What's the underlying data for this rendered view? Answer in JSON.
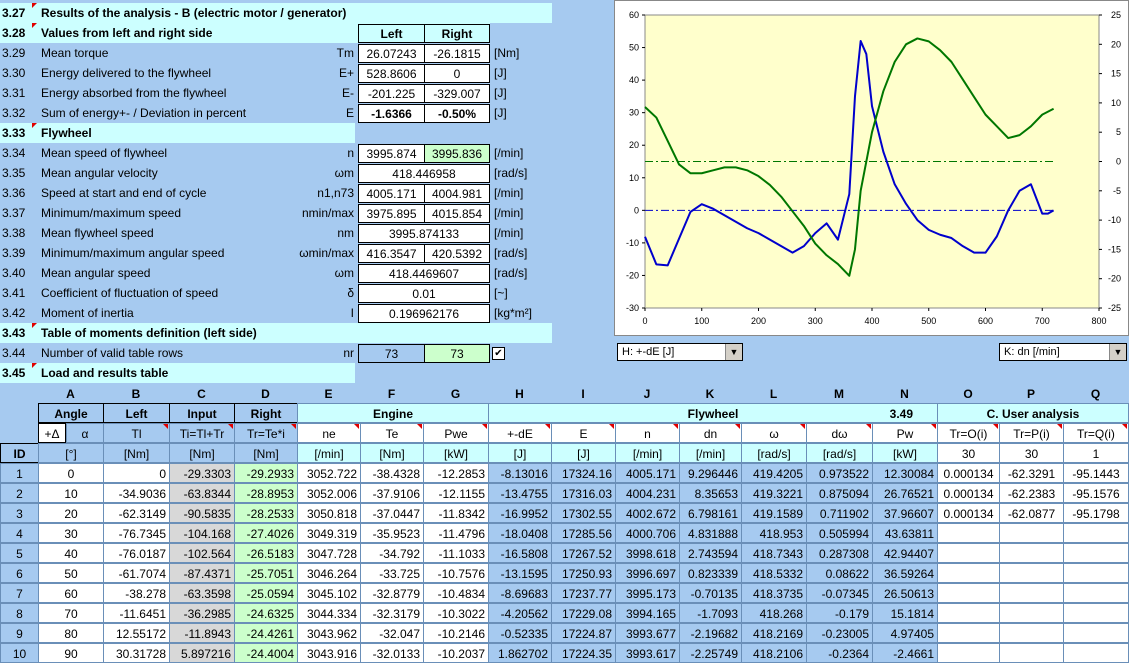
{
  "sections": {
    "s327": {
      "num": "3.27",
      "title": "Results of the analysis - B (electric motor / generator)"
    },
    "s328": {
      "num": "3.28",
      "title": "Values from left and right side",
      "left": "Left",
      "right": "Right"
    },
    "s333": {
      "num": "3.33",
      "title": "Flywheel"
    },
    "s343": {
      "num": "3.43",
      "title": "Table of moments definition (left side)"
    },
    "s345": {
      "num": "3.45",
      "title": "Load and results table"
    }
  },
  "rows": [
    {
      "num": "3.29",
      "label": "Mean torque",
      "sym": "Tm",
      "left": "26.07243",
      "right": "-26.1815",
      "unit": "[Nm]"
    },
    {
      "num": "3.30",
      "label": "Energy delivered to the flywheel",
      "sym": "E+",
      "left": "528.8606",
      "right": "0",
      "unit": "[J]"
    },
    {
      "num": "3.31",
      "label": "Energy absorbed from the flywheel",
      "sym": "E-",
      "left": "-201.225",
      "right": "-329.007",
      "unit": "[J]"
    },
    {
      "num": "3.32",
      "label": "Sum of energy+- / Deviation in percent",
      "sym": "E",
      "left": "-1.6366",
      "right": "-0.50%",
      "unit": "[J]"
    },
    {
      "num": "3.34",
      "label": "Mean speed of flywheel",
      "sym": "n",
      "left": "3995.874",
      "right": "3995.836",
      "unit": "[/min]"
    },
    {
      "num": "3.35",
      "label": "Mean angular velocity",
      "sym": "ωm",
      "full": "418.446958",
      "unit": "[rad/s]"
    },
    {
      "num": "3.36",
      "label": "Speed at start and end of cycle",
      "sym": "n1,n73",
      "left": "4005.171",
      "right": "4004.981",
      "unit": "[/min]"
    },
    {
      "num": "3.37",
      "label": "Minimum/maximum speed",
      "sym": "nmin/max",
      "left": "3975.895",
      "right": "4015.854",
      "unit": "[/min]"
    },
    {
      "num": "3.38",
      "label": "Mean flywheel speed",
      "sym": "nm",
      "full": "3995.874133",
      "unit": "[/min]"
    },
    {
      "num": "3.39",
      "label": "Minimum/maximum angular speed",
      "sym": "ωmin/max",
      "left": "416.3547",
      "right": "420.5392",
      "unit": "[rad/s]"
    },
    {
      "num": "3.40",
      "label": "Mean angular speed",
      "sym": "ωm",
      "full": "418.4469607",
      "unit": "[rad/s]"
    },
    {
      "num": "3.41",
      "label": "Coefficient of fluctuation of speed",
      "sym": "δ",
      "full": "0.01",
      "unit": "[~]"
    },
    {
      "num": "3.42",
      "label": "Moment of inertia",
      "sym": "I",
      "full": "0.196962176",
      "unit": "[kg*m²]"
    },
    {
      "num": "3.44",
      "label": "Number of valid table rows",
      "sym": "nr",
      "left": "73",
      "right": "73"
    }
  ],
  "checkbox_checked": true,
  "dropdowns": {
    "h": "H:  +-dE [J]",
    "k": "K:  dn [/min]"
  },
  "table": {
    "col_letters": [
      "A",
      "B",
      "C",
      "D",
      "E",
      "F",
      "G",
      "H",
      "I",
      "J",
      "K",
      "L",
      "M",
      "N",
      "O",
      "P",
      "Q"
    ],
    "group1": [
      "Angle",
      "Left",
      "Input",
      "Right"
    ],
    "engine": "Engine",
    "flywheel": "Flywheel",
    "flywheel_ref": "3.49",
    "user": "C. User analysis",
    "plus_delta": "+Δ",
    "sym_row": [
      "α",
      "Tl",
      "Ti=Tl+Tr",
      "Tr=Te*i",
      "ne",
      "Te",
      "Pwe",
      "+-dE",
      "E",
      "n",
      "dn",
      "ω",
      "dω",
      "Pw",
      "Tr=O(i)",
      "Tr=P(i)",
      "Tr=Q(i)"
    ],
    "id_label": "ID",
    "unit_row": [
      "[°]",
      "[Nm]",
      "[Nm]",
      "[Nm]",
      "[/min]",
      "[Nm]",
      "[kW]",
      "[J]",
      "[J]",
      "[/min]",
      "[/min]",
      "[rad/s]",
      "[rad/s]",
      "[kW]",
      "30",
      "30",
      "1"
    ],
    "rows": [
      {
        "id": "1",
        "v": [
          "0",
          "0",
          "-29.3303",
          "-29.2933",
          "3052.722",
          "-38.4328",
          "-12.2853",
          "-8.13016",
          "17324.16",
          "4005.171",
          "9.296446",
          "419.4205",
          "0.973522",
          "12.30084",
          "0.000134",
          "-62.3291",
          "-95.1443"
        ]
      },
      {
        "id": "2",
        "v": [
          "10",
          "-34.9036",
          "-63.8344",
          "-28.8953",
          "3052.006",
          "-37.9106",
          "-12.1155",
          "-13.4755",
          "17316.03",
          "4004.231",
          "8.35653",
          "419.3221",
          "0.875094",
          "26.76521",
          "0.000134",
          "-62.2383",
          "-95.1576"
        ]
      },
      {
        "id": "3",
        "v": [
          "20",
          "-62.3149",
          "-90.5835",
          "-28.2533",
          "3050.818",
          "-37.0447",
          "-11.8342",
          "-16.9952",
          "17302.55",
          "4002.672",
          "6.798161",
          "419.1589",
          "0.711902",
          "37.96607",
          "0.000134",
          "-62.0877",
          "-95.1798"
        ]
      },
      {
        "id": "4",
        "v": [
          "30",
          "-76.7345",
          "-104.168",
          "-27.4026",
          "3049.319",
          "-35.9523",
          "-11.4796",
          "-18.0408",
          "17285.56",
          "4000.706",
          "4.831888",
          "418.953",
          "0.505994",
          "43.63811",
          "",
          "",
          ""
        ]
      },
      {
        "id": "5",
        "v": [
          "40",
          "-76.0187",
          "-102.564",
          "-26.5183",
          "3047.728",
          "-34.792",
          "-11.1033",
          "-16.5808",
          "17267.52",
          "3998.618",
          "2.743594",
          "418.7343",
          "0.287308",
          "42.94407",
          "",
          "",
          ""
        ]
      },
      {
        "id": "6",
        "v": [
          "50",
          "-61.7074",
          "-87.4371",
          "-25.7051",
          "3046.264",
          "-33.725",
          "-10.7576",
          "-13.1595",
          "17250.93",
          "3996.697",
          "0.823339",
          "418.5332",
          "0.08622",
          "36.59264",
          "",
          "",
          ""
        ]
      },
      {
        "id": "7",
        "v": [
          "60",
          "-38.278",
          "-63.3598",
          "-25.0594",
          "3045.102",
          "-32.8779",
          "-10.4834",
          "-8.69683",
          "17237.77",
          "3995.173",
          "-0.70135",
          "418.3735",
          "-0.07345",
          "26.50613",
          "",
          "",
          ""
        ]
      },
      {
        "id": "8",
        "v": [
          "70",
          "-11.6451",
          "-36.2985",
          "-24.6325",
          "3044.334",
          "-32.3179",
          "-10.3022",
          "-4.20562",
          "17229.08",
          "3994.165",
          "-1.7093",
          "418.268",
          "-0.179",
          "15.1814",
          "",
          "",
          ""
        ]
      },
      {
        "id": "9",
        "v": [
          "80",
          "12.55172",
          "-11.8943",
          "-24.4261",
          "3043.962",
          "-32.047",
          "-10.2146",
          "-0.52335",
          "17224.87",
          "3993.677",
          "-2.19682",
          "418.2169",
          "-0.23005",
          "4.97405",
          "",
          "",
          ""
        ]
      },
      {
        "id": "10",
        "v": [
          "90",
          "30.31728",
          "5.897216",
          "-24.4004",
          "3043.916",
          "-32.0133",
          "-10.2037",
          "1.862702",
          "17224.35",
          "3993.617",
          "-2.25749",
          "418.2106",
          "-0.2364",
          "-2.4661",
          "",
          "",
          ""
        ]
      }
    ]
  },
  "chart_data": {
    "type": "line",
    "x_ticks": [
      "0",
      "100",
      "200",
      "300",
      "400",
      "500",
      "600",
      "700",
      "800"
    ],
    "y_left_ticks": [
      "60",
      "50",
      "40",
      "30",
      "20",
      "10",
      "0",
      "-10",
      "-20",
      "-30"
    ],
    "y_right_ticks": [
      "25",
      "20",
      "15",
      "10",
      "5",
      "0",
      "-5",
      "-10",
      "-15",
      "-20",
      "-25"
    ],
    "xlim": [
      0,
      800
    ],
    "ylim_left": [
      -30,
      60
    ],
    "ylim_right": [
      -25,
      25
    ],
    "grid": false,
    "series": [
      {
        "axis": "left",
        "color": "#0000cc",
        "x": [
          0,
          20,
          40,
          60,
          80,
          100,
          120,
          140,
          160,
          180,
          200,
          220,
          240,
          260,
          280,
          300,
          320,
          340,
          360,
          370,
          380,
          390,
          400,
          420,
          440,
          460,
          480,
          500,
          520,
          540,
          560,
          580,
          600,
          620,
          640,
          660,
          680,
          700,
          710,
          720
        ],
        "y": [
          -8.1,
          -16.6,
          -16.9,
          -8.7,
          -0.5,
          1.9,
          0.5,
          -1.5,
          -3.5,
          -5.5,
          -7,
          -9,
          -11,
          -13,
          -11,
          -7,
          -4,
          -9,
          5,
          35,
          52,
          48,
          32,
          18,
          8,
          2,
          -3,
          -6,
          -7.5,
          -8.5,
          -11,
          -13,
          -13,
          -8,
          0,
          6,
          8,
          -1,
          -1,
          0
        ]
      },
      {
        "axis": "right",
        "color": "#007700",
        "x": [
          0,
          20,
          40,
          60,
          80,
          100,
          120,
          140,
          160,
          180,
          200,
          220,
          240,
          260,
          280,
          300,
          320,
          340,
          360,
          370,
          380,
          400,
          420,
          440,
          460,
          480,
          500,
          520,
          540,
          560,
          580,
          600,
          620,
          640,
          660,
          680,
          700,
          720
        ],
        "y": [
          9.3,
          7.5,
          3.5,
          -0.5,
          -2,
          -2,
          -1.5,
          -1,
          -1,
          -1.5,
          -2.5,
          -4,
          -6,
          -8.5,
          -11,
          -14,
          -16,
          -17.5,
          -19.5,
          -15,
          -5,
          5,
          12,
          17,
          20,
          21,
          20.5,
          19,
          17,
          14,
          11,
          8,
          6,
          4,
          4.5,
          6,
          8,
          9
        ]
      }
    ],
    "ref_lines": [
      {
        "axis": "left",
        "y": 0,
        "color": "#0000cc"
      },
      {
        "axis": "right",
        "y": 0,
        "color": "#007700"
      }
    ]
  }
}
